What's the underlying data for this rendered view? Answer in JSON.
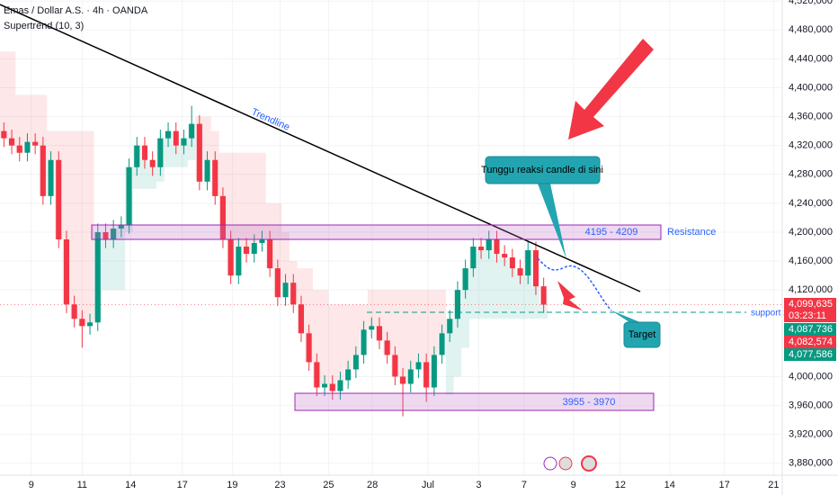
{
  "chart_data": {
    "type": "candlestick",
    "title": "Emas / Dollar A.S. · 4h · OANDA",
    "subtitle": "Supertrend (10, 3)",
    "up_color": "#089981",
    "down_color": "#f23645",
    "grid": true,
    "xlim": [
      -0.5,
      99.5
    ],
    "ylim": [
      3863500,
      4521500
    ],
    "xticks": [
      {
        "value": 3.5,
        "label": "9"
      },
      {
        "value": 10,
        "label": "11"
      },
      {
        "value": 16.2,
        "label": "14"
      },
      {
        "value": 22.8,
        "label": "17"
      },
      {
        "value": 29.2,
        "label": "19"
      },
      {
        "value": 35.3,
        "label": "23"
      },
      {
        "value": 41.5,
        "label": "25"
      },
      {
        "value": 47.1,
        "label": "28"
      },
      {
        "value": 54.2,
        "label": "Jul"
      },
      {
        "value": 60.7,
        "label": "3"
      },
      {
        "value": 66.5,
        "label": "7"
      },
      {
        "value": 72.8,
        "label": "9"
      },
      {
        "value": 78.8,
        "label": "12"
      },
      {
        "value": 85.1,
        "label": "14"
      },
      {
        "value": 92.1,
        "label": "17"
      },
      {
        "value": 98.4,
        "label": "21"
      }
    ],
    "yticks": [
      {
        "value": 4520000,
        "label": "4,520,000"
      },
      {
        "value": 4480000,
        "label": "4,480,000"
      },
      {
        "value": 4440000,
        "label": "4,440,000"
      },
      {
        "value": 4400000,
        "label": "4,400,000"
      },
      {
        "value": 4360000,
        "label": "4,360,000"
      },
      {
        "value": 4320000,
        "label": "4,320,000"
      },
      {
        "value": 4280000,
        "label": "4,280,000"
      },
      {
        "value": 4240000,
        "label": "4,240,000"
      },
      {
        "value": 4200000,
        "label": "4,200,000"
      },
      {
        "value": 4160000,
        "label": "4,160,000"
      },
      {
        "value": 4120000,
        "label": "4,120,000"
      },
      {
        "value": 4000000,
        "label": "4,000,000"
      },
      {
        "value": 3960000,
        "label": "3,960,000"
      },
      {
        "value": 3920000,
        "label": "3,920,000"
      },
      {
        "value": 3880000,
        "label": "3,880,000"
      }
    ],
    "open": [
      4340000,
      4330000,
      4320000,
      4310000,
      4325000,
      4320000,
      4250000,
      4300000,
      4190000,
      4100000,
      4080000,
      4070000,
      4075000,
      4200000,
      4190000,
      4205000,
      4210000,
      4290000,
      4320000,
      4300000,
      4290000,
      4330000,
      4340000,
      4320000,
      4330000,
      4350000,
      4270000,
      4300000,
      4250000,
      4190000,
      4140000,
      4180000,
      4170000,
      4185000,
      4190000,
      4150000,
      4110000,
      4130000,
      4100000,
      4060000,
      4020000,
      3985000,
      3990000,
      3980000,
      3995000,
      4010000,
      4030000,
      4065000,
      4070000,
      4050000,
      4030000,
      4000000,
      3990000,
      4010000,
      4020000,
      3985000,
      4030000,
      4060000,
      4080000,
      4120000,
      4150000,
      4180000,
      4175000,
      4190000,
      4170000,
      4165000,
      4150000,
      4140000,
      4175000,
      4125000
    ],
    "high": [
      4352000,
      4342000,
      4332000,
      4337000,
      4337000,
      4332000,
      4312000,
      4312000,
      4202000,
      4112000,
      4092000,
      4087000,
      4212000,
      4212000,
      4217000,
      4222000,
      4302000,
      4332000,
      4332000,
      4312000,
      4342000,
      4352000,
      4352000,
      4342000,
      4375000,
      4362000,
      4312000,
      4312000,
      4262000,
      4202000,
      4192000,
      4192000,
      4197000,
      4202000,
      4202000,
      4162000,
      4142000,
      4142000,
      4112000,
      4072000,
      4032000,
      4002000,
      4002000,
      4007000,
      4022000,
      4042000,
      4077000,
      4082000,
      4082000,
      4062000,
      4042000,
      4012000,
      4022000,
      4032000,
      4032000,
      4042000,
      4072000,
      4092000,
      4132000,
      4162000,
      4192000,
      4192000,
      4202000,
      4202000,
      4182000,
      4177000,
      4162000,
      4187000,
      4187000,
      4137000
    ],
    "low": [
      4318000,
      4308000,
      4298000,
      4298000,
      4308000,
      4238000,
      4238000,
      4178000,
      4088000,
      4068000,
      4040000,
      4058000,
      4063000,
      4178000,
      4178000,
      4193000,
      4198000,
      4278000,
      4288000,
      4278000,
      4278000,
      4318000,
      4308000,
      4308000,
      4318000,
      4258000,
      4258000,
      4238000,
      4178000,
      4128000,
      4128000,
      4158000,
      4158000,
      4173000,
      4138000,
      4098000,
      4098000,
      4088000,
      4048000,
      4008000,
      3973000,
      3973000,
      3968000,
      3968000,
      3983000,
      3998000,
      4018000,
      4053000,
      4038000,
      4018000,
      3988000,
      3945000,
      3978000,
      3998000,
      3965000,
      3973000,
      4018000,
      4048000,
      4068000,
      4108000,
      4138000,
      4163000,
      4163000,
      4158000,
      4153000,
      4138000,
      4128000,
      4128000,
      4113000,
      4088000
    ],
    "close": [
      4330000,
      4320000,
      4310000,
      4325000,
      4320000,
      4250000,
      4300000,
      4190000,
      4100000,
      4080000,
      4070000,
      4075000,
      4200000,
      4190000,
      4205000,
      4210000,
      4290000,
      4320000,
      4300000,
      4290000,
      4330000,
      4340000,
      4320000,
      4330000,
      4350000,
      4270000,
      4300000,
      4250000,
      4190000,
      4140000,
      4180000,
      4170000,
      4185000,
      4190000,
      4150000,
      4110000,
      4130000,
      4100000,
      4060000,
      4020000,
      3985000,
      3990000,
      3980000,
      3995000,
      4010000,
      4030000,
      4065000,
      4070000,
      4050000,
      4030000,
      4000000,
      3990000,
      4010000,
      4020000,
      3985000,
      4030000,
      4060000,
      4080000,
      4120000,
      4150000,
      4180000,
      4175000,
      4190000,
      4170000,
      4165000,
      4150000,
      4140000,
      4175000,
      4125000,
      4099635
    ],
    "supertrend": [
      4450000,
      4450000,
      4390000,
      4390000,
      4390000,
      4390000,
      4340000,
      4340000,
      4340000,
      4340000,
      4340000,
      4340000,
      4080000,
      4120000,
      4120000,
      4120000,
      4200000,
      4260000,
      4260000,
      4260000,
      4270000,
      4290000,
      4290000,
      4290000,
      4300000,
      4360000,
      4360000,
      4340000,
      4310000,
      4310000,
      4310000,
      4310000,
      4310000,
      4310000,
      4240000,
      4240000,
      4200000,
      4160000,
      4150000,
      4150000,
      4120000,
      4120000,
      4100000,
      4100000,
      4100000,
      4100000,
      4100000,
      4120000,
      4120000,
      4120000,
      4120000,
      4120000,
      4120000,
      4120000,
      4120000,
      4120000,
      4120000,
      3975000,
      4000000,
      4040000,
      4080000,
      4080000,
      4080000,
      4080000,
      4080000,
      4080000,
      4080000,
      4080000,
      4080000,
      4080000
    ],
    "price_labels": [
      {
        "text": "4,099,635",
        "color": "#f23645"
      },
      {
        "text": "03:23:11",
        "color": "#f23645"
      },
      {
        "text": "4,087,736",
        "color": "#089981"
      },
      {
        "text": "4,082,574",
        "color": "#f23645"
      },
      {
        "text": "4,077,586",
        "color": "#089981"
      }
    ],
    "annotations": {
      "trendline": "Trendline",
      "resistance_zone": "4195 - 4209",
      "resistance": "Resistance",
      "support_zone_range": "3955 - 3970",
      "support_zone": "support zone",
      "callout": "Tunggu reaksi candle di sini",
      "target": "Target"
    }
  }
}
